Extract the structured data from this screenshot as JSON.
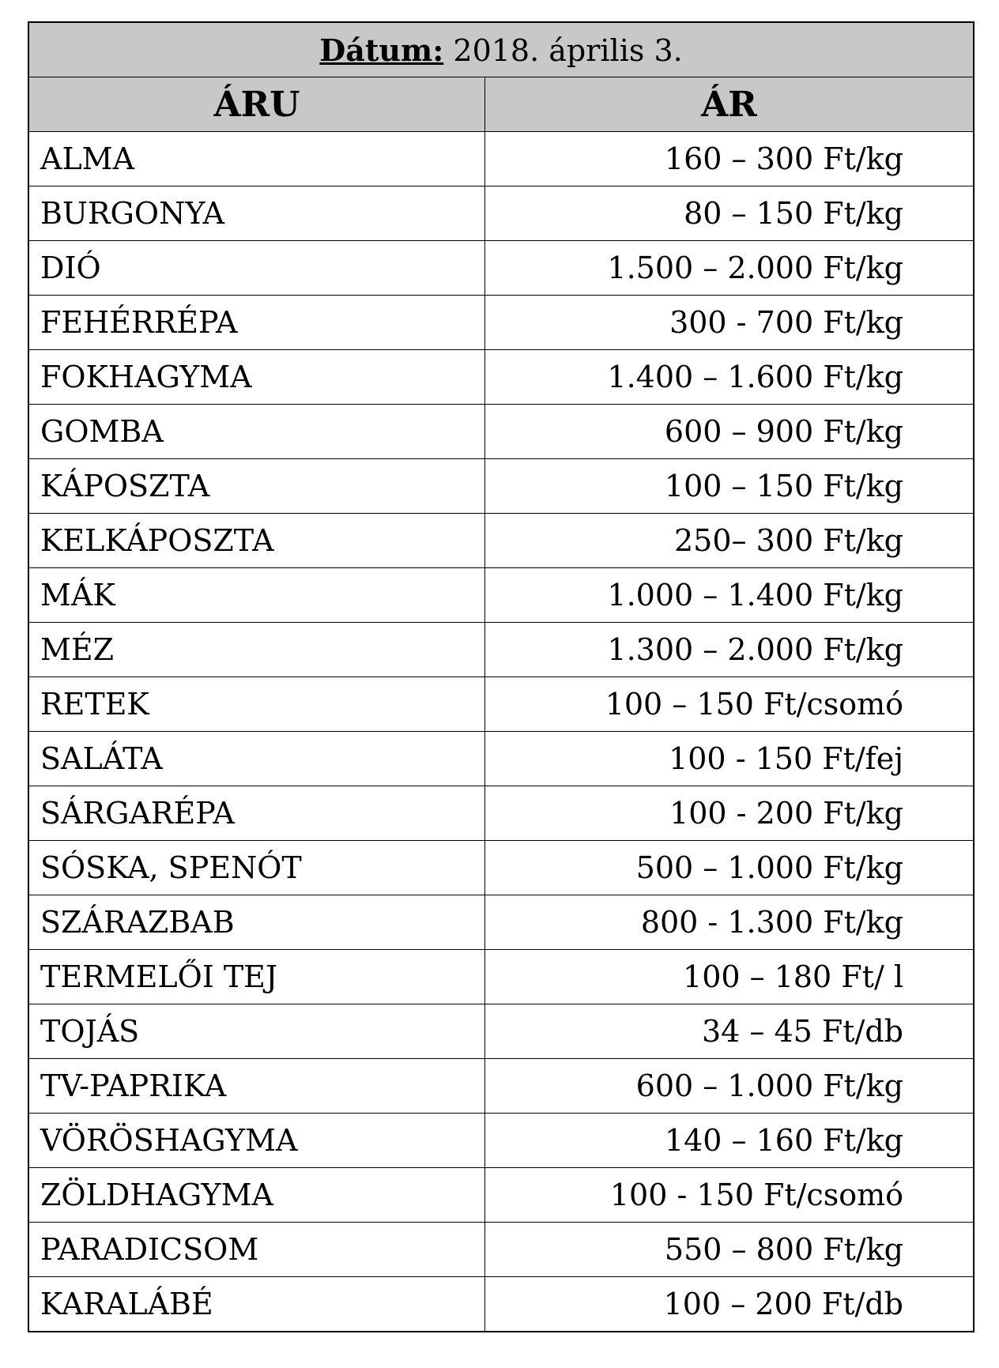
{
  "date_label": "Dátum:",
  "date_value": "2018. április 3.",
  "headers": [
    "ÁRU",
    "ÁR"
  ],
  "rows": [
    {
      "item": "ALMA",
      "price": "160 – 300 Ft/kg"
    },
    {
      "item": "BURGONYA",
      "price": "80 – 150 Ft/kg"
    },
    {
      "item": "DIÓ",
      "price": "1.500 – 2.000 Ft/kg"
    },
    {
      "item": "FEHÉRRÉPA",
      "price": "300 - 700 Ft/kg"
    },
    {
      "item": "FOKHAGYMA",
      "price": "1.400 – 1.600 Ft/kg"
    },
    {
      "item": "GOMBA",
      "price": "600 – 900 Ft/kg"
    },
    {
      "item": "KÁPOSZTA",
      "price": "100 – 150 Ft/kg"
    },
    {
      "item": "KELKÁPOSZTA",
      "price": "250– 300 Ft/kg"
    },
    {
      "item": "MÁK",
      "price": "1.000 – 1.400 Ft/kg"
    },
    {
      "item": "MÉZ",
      "price": "1.300 – 2.000 Ft/kg"
    },
    {
      "item": "RETEK",
      "price": "100 – 150 Ft/csomó"
    },
    {
      "item": "SALÁTA",
      "price": "100 - 150 Ft/fej"
    },
    {
      "item": "SÁRGARÉPA",
      "price": "100 - 200 Ft/kg"
    },
    {
      "item": "SÓSKA, SPENÓT",
      "price": "500 – 1.000 Ft/kg"
    },
    {
      "item": "SZÁRAZBAB",
      "price": "800 - 1.300 Ft/kg"
    },
    {
      "item": "TERMELŐI TEJ",
      "price": "100 – 180 Ft/ l"
    },
    {
      "item": "TOJÁS",
      "price": "34 – 45 Ft/db"
    },
    {
      "item": "TV-PAPRIKA",
      "price": "600 – 1.000 Ft/kg"
    },
    {
      "item": "VÖRÖSHAGYMA",
      "price": "140 – 160 Ft/kg"
    },
    {
      "item": "ZÖLDHAGYMA",
      "price": "100 - 150 Ft/csomó"
    },
    {
      "item": "PARADICSOM",
      "price": "550 – 800 Ft/kg"
    },
    {
      "item": "KARALÁBÉ",
      "price": "100 – 200 Ft/db"
    }
  ]
}
